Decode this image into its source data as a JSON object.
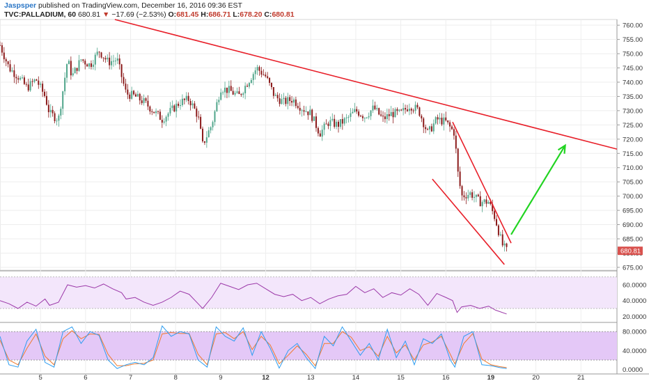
{
  "header": {
    "author": "Jaspsper",
    "published": "published on TradingView.com, December 16, 2016 09:36 EST",
    "symbol": "TVC:PALLADIUM, 60",
    "last": "680.81",
    "change_arrow": "▼",
    "change": "−17.69 (−2.53%)",
    "open_label": "O:",
    "open": "681.45",
    "high_label": "H:",
    "high": "686.71",
    "low_label": "L:",
    "low": "678.20",
    "close_label": "C:",
    "close": "680.81"
  },
  "colors": {
    "up": "#4fa58a",
    "down": "#8b1a1a",
    "trendline": "#e8202a",
    "arrow": "#22d422",
    "rsi": "#9b38a8",
    "rsi_band": "#f3e6fb",
    "stoch_band": "#e4c8f7",
    "stoch_k": "#2e9df0",
    "stoch_d": "#f07a2e",
    "last_price_bg": "#d9534f"
  },
  "chart_data": [
    {
      "type": "candlestick",
      "title": "TVC:PALLADIUM, 60",
      "ylim": [
        674,
        762
      ],
      "y_ticks": [
        "760.00",
        "755.00",
        "750.00",
        "745.00",
        "740.00",
        "735.00",
        "730.00",
        "725.00",
        "720.00",
        "715.00",
        "710.00",
        "705.00",
        "700.00",
        "695.00",
        "690.00",
        "685.00",
        "680.00",
        "675.00"
      ],
      "x_ticks": [
        "5",
        "6",
        "7",
        "8",
        "9",
        "12",
        "13",
        "14",
        "15",
        "16",
        "19",
        "20",
        "21"
      ],
      "xlim": [
        0,
        13.7
      ],
      "last_price_label": "680.81",
      "close_path": [
        [
          0.0,
          753
        ],
        [
          0.2,
          745
        ],
        [
          0.4,
          742
        ],
        [
          0.6,
          738
        ],
        [
          0.8,
          741
        ],
        [
          1.0,
          735
        ],
        [
          1.1,
          729
        ],
        [
          1.3,
          727
        ],
        [
          1.5,
          748
        ],
        [
          1.6,
          742
        ],
        [
          1.8,
          748
        ],
        [
          2.0,
          746
        ],
        [
          2.2,
          751
        ],
        [
          2.4,
          747
        ],
        [
          2.6,
          748
        ],
        [
          2.8,
          736
        ],
        [
          3.0,
          735
        ],
        [
          3.2,
          733
        ],
        [
          3.4,
          730
        ],
        [
          3.6,
          727
        ],
        [
          3.8,
          730
        ],
        [
          4.0,
          733
        ],
        [
          4.2,
          734
        ],
        [
          4.4,
          728
        ],
        [
          4.5,
          718
        ],
        [
          4.7,
          725
        ],
        [
          4.9,
          738
        ],
        [
          5.1,
          737
        ],
        [
          5.3,
          735
        ],
        [
          5.5,
          740
        ],
        [
          5.7,
          745
        ],
        [
          5.9,
          742
        ],
        [
          6.1,
          735
        ],
        [
          6.3,
          733
        ],
        [
          6.5,
          734
        ],
        [
          6.7,
          731
        ],
        [
          6.9,
          729
        ],
        [
          7.1,
          722
        ],
        [
          7.3,
          726
        ],
        [
          7.5,
          725
        ],
        [
          7.7,
          727
        ],
        [
          7.9,
          730
        ],
        [
          8.1,
          728
        ],
        [
          8.3,
          731
        ],
        [
          8.5,
          727
        ],
        [
          8.7,
          729
        ],
        [
          8.9,
          729
        ],
        [
          9.1,
          732
        ],
        [
          9.3,
          730
        ],
        [
          9.5,
          722
        ],
        [
          9.7,
          727
        ],
        [
          9.9,
          726
        ],
        [
          10.1,
          722
        ],
        [
          10.15,
          710
        ],
        [
          10.25,
          700
        ],
        [
          10.45,
          701
        ],
        [
          10.65,
          698
        ],
        [
          10.85,
          698
        ],
        [
          11.0,
          692
        ],
        [
          11.15,
          683
        ],
        [
          11.25,
          680.81
        ]
      ],
      "rsi": {
        "band_top": 70,
        "band_bottom": 30,
        "y_ticks": [
          "60.0000",
          "40.0000",
          "20.0000"
        ],
        "values": [
          [
            0.0,
            40
          ],
          [
            0.2,
            36
          ],
          [
            0.4,
            30
          ],
          [
            0.6,
            38
          ],
          [
            0.8,
            33
          ],
          [
            1.0,
            42
          ],
          [
            1.1,
            34
          ],
          [
            1.3,
            38
          ],
          [
            1.5,
            60
          ],
          [
            1.7,
            57
          ],
          [
            1.9,
            59
          ],
          [
            2.1,
            56
          ],
          [
            2.3,
            61
          ],
          [
            2.5,
            55
          ],
          [
            2.7,
            50
          ],
          [
            2.8,
            42
          ],
          [
            3.0,
            44
          ],
          [
            3.2,
            38
          ],
          [
            3.4,
            34
          ],
          [
            3.6,
            38
          ],
          [
            3.8,
            44
          ],
          [
            4.0,
            52
          ],
          [
            4.2,
            48
          ],
          [
            4.4,
            36
          ],
          [
            4.5,
            30
          ],
          [
            4.7,
            44
          ],
          [
            4.9,
            62
          ],
          [
            5.1,
            58
          ],
          [
            5.3,
            54
          ],
          [
            5.5,
            60
          ],
          [
            5.7,
            62
          ],
          [
            5.9,
            55
          ],
          [
            6.1,
            48
          ],
          [
            6.3,
            45
          ],
          [
            6.5,
            48
          ],
          [
            6.7,
            40
          ],
          [
            6.9,
            44
          ],
          [
            7.1,
            36
          ],
          [
            7.3,
            42
          ],
          [
            7.5,
            46
          ],
          [
            7.7,
            48
          ],
          [
            7.9,
            58
          ],
          [
            8.1,
            50
          ],
          [
            8.3,
            55
          ],
          [
            8.5,
            44
          ],
          [
            8.7,
            50
          ],
          [
            8.9,
            47
          ],
          [
            9.1,
            55
          ],
          [
            9.3,
            48
          ],
          [
            9.5,
            34
          ],
          [
            9.7,
            49
          ],
          [
            9.9,
            44
          ],
          [
            10.05,
            40
          ],
          [
            10.15,
            25
          ],
          [
            10.25,
            32
          ],
          [
            10.45,
            34
          ],
          [
            10.65,
            30
          ],
          [
            10.85,
            33
          ],
          [
            11.0,
            28
          ],
          [
            11.1,
            26
          ],
          [
            11.25,
            23
          ]
        ]
      },
      "stoch": {
        "band_top": 80,
        "band_bottom": 20,
        "y_ticks": [
          "80.0000",
          "40.0000",
          "0.0000"
        ],
        "k": [
          [
            0.0,
            70
          ],
          [
            0.2,
            10
          ],
          [
            0.4,
            5
          ],
          [
            0.6,
            60
          ],
          [
            0.8,
            85
          ],
          [
            1.0,
            15
          ],
          [
            1.2,
            5
          ],
          [
            1.4,
            80
          ],
          [
            1.6,
            90
          ],
          [
            1.8,
            55
          ],
          [
            2.0,
            80
          ],
          [
            2.2,
            72
          ],
          [
            2.4,
            20
          ],
          [
            2.6,
            2
          ],
          [
            2.8,
            10
          ],
          [
            3.0,
            15
          ],
          [
            3.2,
            10
          ],
          [
            3.4,
            25
          ],
          [
            3.6,
            92
          ],
          [
            3.8,
            70
          ],
          [
            4.0,
            80
          ],
          [
            4.2,
            75
          ],
          [
            4.4,
            20
          ],
          [
            4.6,
            5
          ],
          [
            4.8,
            90
          ],
          [
            5.0,
            70
          ],
          [
            5.2,
            60
          ],
          [
            5.4,
            88
          ],
          [
            5.6,
            30
          ],
          [
            5.8,
            80
          ],
          [
            6.0,
            45
          ],
          [
            6.2,
            3
          ],
          [
            6.4,
            40
          ],
          [
            6.6,
            55
          ],
          [
            6.8,
            25
          ],
          [
            7.0,
            2
          ],
          [
            7.2,
            70
          ],
          [
            7.4,
            50
          ],
          [
            7.6,
            90
          ],
          [
            7.8,
            60
          ],
          [
            8.0,
            30
          ],
          [
            8.2,
            55
          ],
          [
            8.4,
            20
          ],
          [
            8.6,
            85
          ],
          [
            8.8,
            25
          ],
          [
            9.0,
            60
          ],
          [
            9.2,
            10
          ],
          [
            9.4,
            65
          ],
          [
            9.6,
            55
          ],
          [
            9.8,
            75
          ],
          [
            10.0,
            20
          ],
          [
            10.1,
            5
          ],
          [
            10.3,
            70
          ],
          [
            10.5,
            80
          ],
          [
            10.7,
            10
          ],
          [
            10.9,
            8
          ],
          [
            11.1,
            4
          ],
          [
            11.25,
            2
          ]
        ],
        "d": [
          [
            0.0,
            62
          ],
          [
            0.2,
            20
          ],
          [
            0.4,
            10
          ],
          [
            0.6,
            45
          ],
          [
            0.8,
            75
          ],
          [
            1.0,
            28
          ],
          [
            1.2,
            10
          ],
          [
            1.4,
            65
          ],
          [
            1.6,
            82
          ],
          [
            1.8,
            65
          ],
          [
            2.0,
            75
          ],
          [
            2.2,
            74
          ],
          [
            2.4,
            32
          ],
          [
            2.6,
            8
          ],
          [
            2.8,
            8
          ],
          [
            3.0,
            12
          ],
          [
            3.2,
            13
          ],
          [
            3.4,
            20
          ],
          [
            3.6,
            75
          ],
          [
            3.8,
            78
          ],
          [
            4.0,
            76
          ],
          [
            4.2,
            76
          ],
          [
            4.4,
            32
          ],
          [
            4.6,
            10
          ],
          [
            4.8,
            75
          ],
          [
            5.0,
            78
          ],
          [
            5.2,
            65
          ],
          [
            5.4,
            80
          ],
          [
            5.6,
            42
          ],
          [
            5.8,
            70
          ],
          [
            6.0,
            52
          ],
          [
            6.2,
            12
          ],
          [
            6.4,
            30
          ],
          [
            6.6,
            50
          ],
          [
            6.8,
            32
          ],
          [
            7.0,
            8
          ],
          [
            7.2,
            55
          ],
          [
            7.4,
            55
          ],
          [
            7.6,
            80
          ],
          [
            7.8,
            68
          ],
          [
            8.0,
            40
          ],
          [
            8.2,
            48
          ],
          [
            8.4,
            28
          ],
          [
            8.6,
            70
          ],
          [
            8.8,
            35
          ],
          [
            9.0,
            52
          ],
          [
            9.2,
            20
          ],
          [
            9.4,
            52
          ],
          [
            9.6,
            58
          ],
          [
            9.8,
            70
          ],
          [
            10.0,
            32
          ],
          [
            10.1,
            12
          ],
          [
            10.3,
            55
          ],
          [
            10.5,
            76
          ],
          [
            10.7,
            22
          ],
          [
            10.9,
            10
          ],
          [
            11.1,
            6
          ],
          [
            11.25,
            4
          ]
        ]
      },
      "drawings": {
        "main_trendline": [
          [
            2.55,
            762
          ],
          [
            13.7,
            716.5
          ]
        ],
        "wedge_upper": [
          [
            10.05,
            726
          ],
          [
            11.35,
            683.5
          ]
        ],
        "wedge_lower": [
          [
            9.6,
            706
          ],
          [
            11.2,
            676
          ]
        ],
        "bullish_arrow": [
          [
            11.35,
            686.5
          ],
          [
            12.55,
            717.8
          ]
        ]
      }
    }
  ]
}
